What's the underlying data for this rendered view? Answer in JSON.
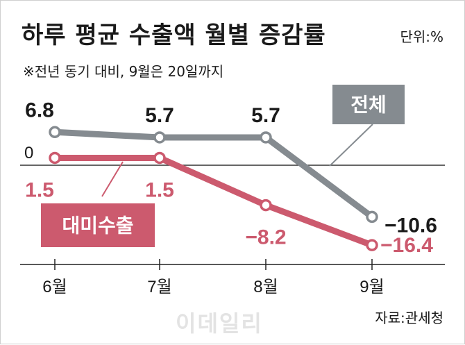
{
  "title": "하루 평균 수출액 월별 증감률",
  "unit": "단위:%",
  "subtitle": "※전년 동기 대비, 9월은 20일까지",
  "source": "자료:관세청",
  "watermark": "이데일리",
  "chart_data": {
    "type": "line",
    "title": "하루 평균 수출액 월별 증감률",
    "categories": [
      "6월",
      "7월",
      "8월",
      "9월"
    ],
    "zero_label": "0",
    "series": [
      {
        "name": "전체",
        "values": [
          6.8,
          5.7,
          5.7,
          -10.6
        ],
        "labels": [
          "6.8",
          "5.7",
          "5.7",
          "−10.6"
        ],
        "color": "#858b90"
      },
      {
        "name": "대미수출",
        "values": [
          1.5,
          1.5,
          -8.2,
          -16.4
        ],
        "labels": [
          "1.5",
          "1.5",
          "−8.2",
          "−16.4"
        ],
        "color": "#cc5a6e"
      }
    ],
    "xlabel": "",
    "ylabel": "",
    "ylim": [
      -18,
      9
    ],
    "grid": false
  }
}
